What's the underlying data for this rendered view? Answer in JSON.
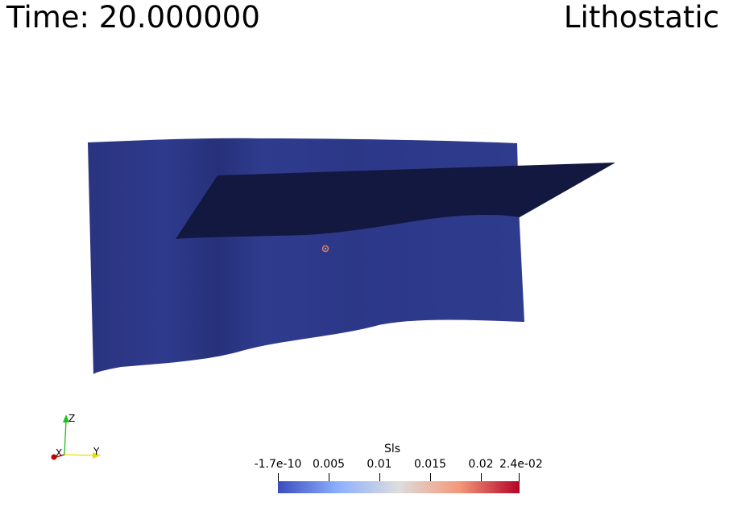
{
  "header": {
    "time_label": "Time: 20.000000",
    "scenario_label": "Lithostatic"
  },
  "scene": {
    "surface_color": "#2e3a8c",
    "fault_plane_color": "#121840",
    "probe_marker_color": "#e0785a"
  },
  "colorbar": {
    "title": "Sls",
    "tick_labels": [
      "-1.7e-10",
      "0.005",
      "0.01",
      "0.015",
      "0.02",
      "2.4e-02"
    ],
    "gradient_colors": [
      "#3b4cc0",
      "#8db0fe",
      "#dddddd",
      "#f4987a",
      "#b40426"
    ]
  },
  "orientation_axes": {
    "x_label": "X",
    "y_label": "Y",
    "z_label": "Z",
    "x_color": "#c00000",
    "y_color": "#e8e000",
    "z_color": "#20c020"
  }
}
